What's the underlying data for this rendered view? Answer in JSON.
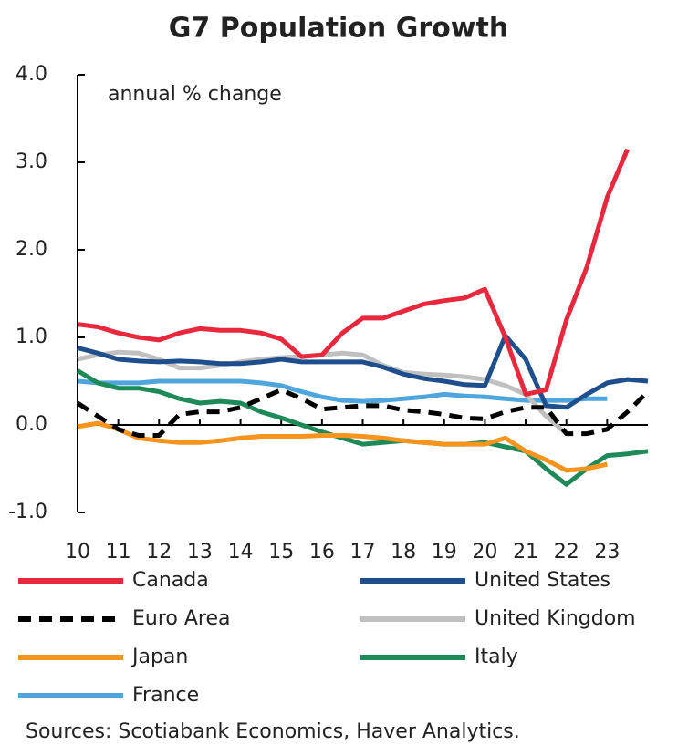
{
  "chart_data": {
    "type": "line",
    "title": "G7 Population Growth",
    "annotation": "annual % change",
    "source": "Sources: Scotiabank Economics, Haver Analytics.",
    "x": [
      10,
      10.5,
      11,
      11.5,
      12,
      12.5,
      13,
      13.5,
      14,
      14.5,
      15,
      15.5,
      16,
      16.5,
      17,
      17.5,
      18,
      18.5,
      19,
      19.5,
      20,
      20.5,
      21,
      21.5,
      22,
      22.5,
      23,
      23.5,
      24
    ],
    "xlim": [
      10,
      24
    ],
    "xticks": [
      10,
      11,
      12,
      13,
      14,
      15,
      16,
      17,
      18,
      19,
      20,
      21,
      22,
      23
    ],
    "ylim": [
      -1,
      4
    ],
    "yticks": [
      {
        "value": -1,
        "label": "-1.0"
      },
      {
        "value": 0,
        "label": "0.0"
      },
      {
        "value": 1,
        "label": "1.0"
      },
      {
        "value": 2,
        "label": "2.0"
      },
      {
        "value": 3,
        "label": "3.0"
      },
      {
        "value": 4,
        "label": "4.0"
      }
    ],
    "series": [
      {
        "name": "Canada",
        "color": "#e8283c",
        "values": [
          1.15,
          1.12,
          1.05,
          1.0,
          0.97,
          1.05,
          1.1,
          1.08,
          1.08,
          1.05,
          0.98,
          0.78,
          0.8,
          1.05,
          1.22,
          1.22,
          1.3,
          1.38,
          1.42,
          1.45,
          1.55,
          1.0,
          0.35,
          0.4,
          1.2,
          1.8,
          2.6,
          3.15,
          null
        ]
      },
      {
        "name": "United States",
        "color": "#1f4e8c",
        "values": [
          0.88,
          0.82,
          0.75,
          0.73,
          0.72,
          0.73,
          0.72,
          0.7,
          0.7,
          0.72,
          0.75,
          0.72,
          0.72,
          0.72,
          0.72,
          0.66,
          0.58,
          0.53,
          0.5,
          0.46,
          0.45,
          1.02,
          0.75,
          0.22,
          0.2,
          0.35,
          0.48,
          0.52,
          0.5
        ]
      },
      {
        "name": "Euro Area",
        "color": "#000000",
        "line_style": "dashed",
        "values": [
          0.25,
          0.1,
          -0.05,
          -0.12,
          -0.12,
          0.12,
          0.15,
          0.15,
          0.2,
          0.3,
          0.4,
          0.3,
          0.18,
          0.2,
          0.22,
          0.22,
          0.17,
          0.15,
          0.12,
          0.08,
          0.07,
          0.15,
          0.2,
          0.2,
          -0.1,
          -0.1,
          -0.05,
          0.15,
          0.38
        ]
      },
      {
        "name": "United Kingdom",
        "color": "#c0c0c0",
        "values": [
          0.75,
          0.8,
          0.83,
          0.82,
          0.75,
          0.65,
          0.65,
          0.68,
          0.72,
          0.75,
          0.77,
          0.78,
          0.8,
          0.82,
          0.8,
          0.68,
          0.6,
          0.58,
          0.57,
          0.55,
          0.52,
          0.45,
          0.35,
          0.1,
          -0.1,
          null,
          null,
          null,
          null
        ]
      },
      {
        "name": "Japan",
        "color": "#f7941d",
        "values": [
          -0.02,
          0.02,
          -0.05,
          -0.15,
          -0.18,
          -0.2,
          -0.2,
          -0.18,
          -0.15,
          -0.13,
          -0.13,
          -0.13,
          -0.12,
          -0.12,
          -0.13,
          -0.15,
          -0.18,
          -0.2,
          -0.22,
          -0.22,
          -0.22,
          -0.15,
          -0.3,
          -0.4,
          -0.52,
          -0.5,
          -0.45,
          null,
          null
        ]
      },
      {
        "name": "Italy",
        "color": "#1e8a5a",
        "values": [
          0.62,
          0.48,
          0.42,
          0.42,
          0.38,
          0.3,
          0.25,
          0.27,
          0.25,
          0.15,
          0.08,
          0.0,
          -0.08,
          -0.15,
          -0.22,
          -0.2,
          -0.18,
          -0.2,
          -0.22,
          -0.22,
          -0.2,
          -0.25,
          -0.3,
          -0.5,
          -0.68,
          -0.5,
          -0.35,
          -0.33,
          -0.3
        ]
      },
      {
        "name": "France",
        "color": "#4ea6dc",
        "values": [
          0.5,
          0.48,
          0.48,
          0.48,
          0.5,
          0.5,
          0.5,
          0.5,
          0.5,
          0.48,
          0.45,
          0.38,
          0.32,
          0.28,
          0.27,
          0.28,
          0.3,
          0.32,
          0.35,
          0.33,
          0.32,
          0.3,
          0.28,
          0.28,
          0.28,
          0.3,
          0.3,
          null,
          null
        ]
      }
    ]
  }
}
